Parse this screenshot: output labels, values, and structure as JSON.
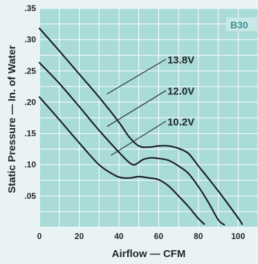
{
  "colors": {
    "plot_background": "#a9dbd9",
    "grid": "#ffffff",
    "curve": "#1a1f21",
    "badge_text": "#3d8f9a",
    "badge_background": "#c7e8e6"
  },
  "chart_data": {
    "type": "line",
    "badge": "B30",
    "xlabel": "Airflow — CFM",
    "ylabel": "Static Pressure — In. of Water",
    "xlim": [
      0,
      110
    ],
    "ylim": [
      0,
      0.35
    ],
    "x_ticks": [
      0,
      20,
      40,
      60,
      80,
      100
    ],
    "x_tick_labels": [
      "0",
      "20",
      "40",
      "60",
      "80",
      "100"
    ],
    "y_ticks": [
      0.05,
      0.1,
      0.15,
      0.2,
      0.25,
      0.3,
      0.35
    ],
    "y_tick_labels": [
      ".05",
      ".10",
      ".15",
      ".20",
      ".25",
      ".30",
      ".35"
    ],
    "grid": true,
    "series": [
      {
        "name": "13.8V",
        "x": [
          0,
          10,
          20,
          30,
          40,
          45,
          50,
          55,
          60,
          65,
          70,
          75,
          80,
          90,
          100,
          102
        ],
        "y": [
          0.318,
          0.282,
          0.245,
          0.208,
          0.168,
          0.145,
          0.13,
          0.128,
          0.13,
          0.13,
          0.126,
          0.118,
          0.098,
          0.058,
          0.015,
          0.005
        ]
      },
      {
        "name": "12.0V",
        "x": [
          0,
          10,
          20,
          30,
          40,
          45,
          48,
          52,
          56,
          60,
          65,
          70,
          75,
          80,
          85,
          90,
          93
        ],
        "y": [
          0.263,
          0.23,
          0.193,
          0.155,
          0.12,
          0.104,
          0.1,
          0.108,
          0.111,
          0.11,
          0.107,
          0.098,
          0.086,
          0.065,
          0.04,
          0.012,
          0.004
        ]
      },
      {
        "name": "10.2V",
        "x": [
          0,
          10,
          20,
          30,
          38,
          42,
          46,
          50,
          55,
          60,
          65,
          70,
          75,
          80,
          83
        ],
        "y": [
          0.208,
          0.172,
          0.135,
          0.1,
          0.083,
          0.079,
          0.079,
          0.081,
          0.079,
          0.076,
          0.066,
          0.05,
          0.033,
          0.014,
          0.005
        ]
      }
    ],
    "label_positions_data": [
      {
        "series": "13.8V",
        "text_at": [
          63,
          0.262
        ],
        "leader_to": [
          34,
          0.213
        ]
      },
      {
        "series": "12.0V",
        "text_at": [
          63,
          0.212
        ],
        "leader_to": [
          34,
          0.161
        ]
      },
      {
        "series": "10.2V",
        "text_at": [
          63,
          0.163
        ],
        "leader_to": [
          36,
          0.115
        ]
      }
    ]
  }
}
